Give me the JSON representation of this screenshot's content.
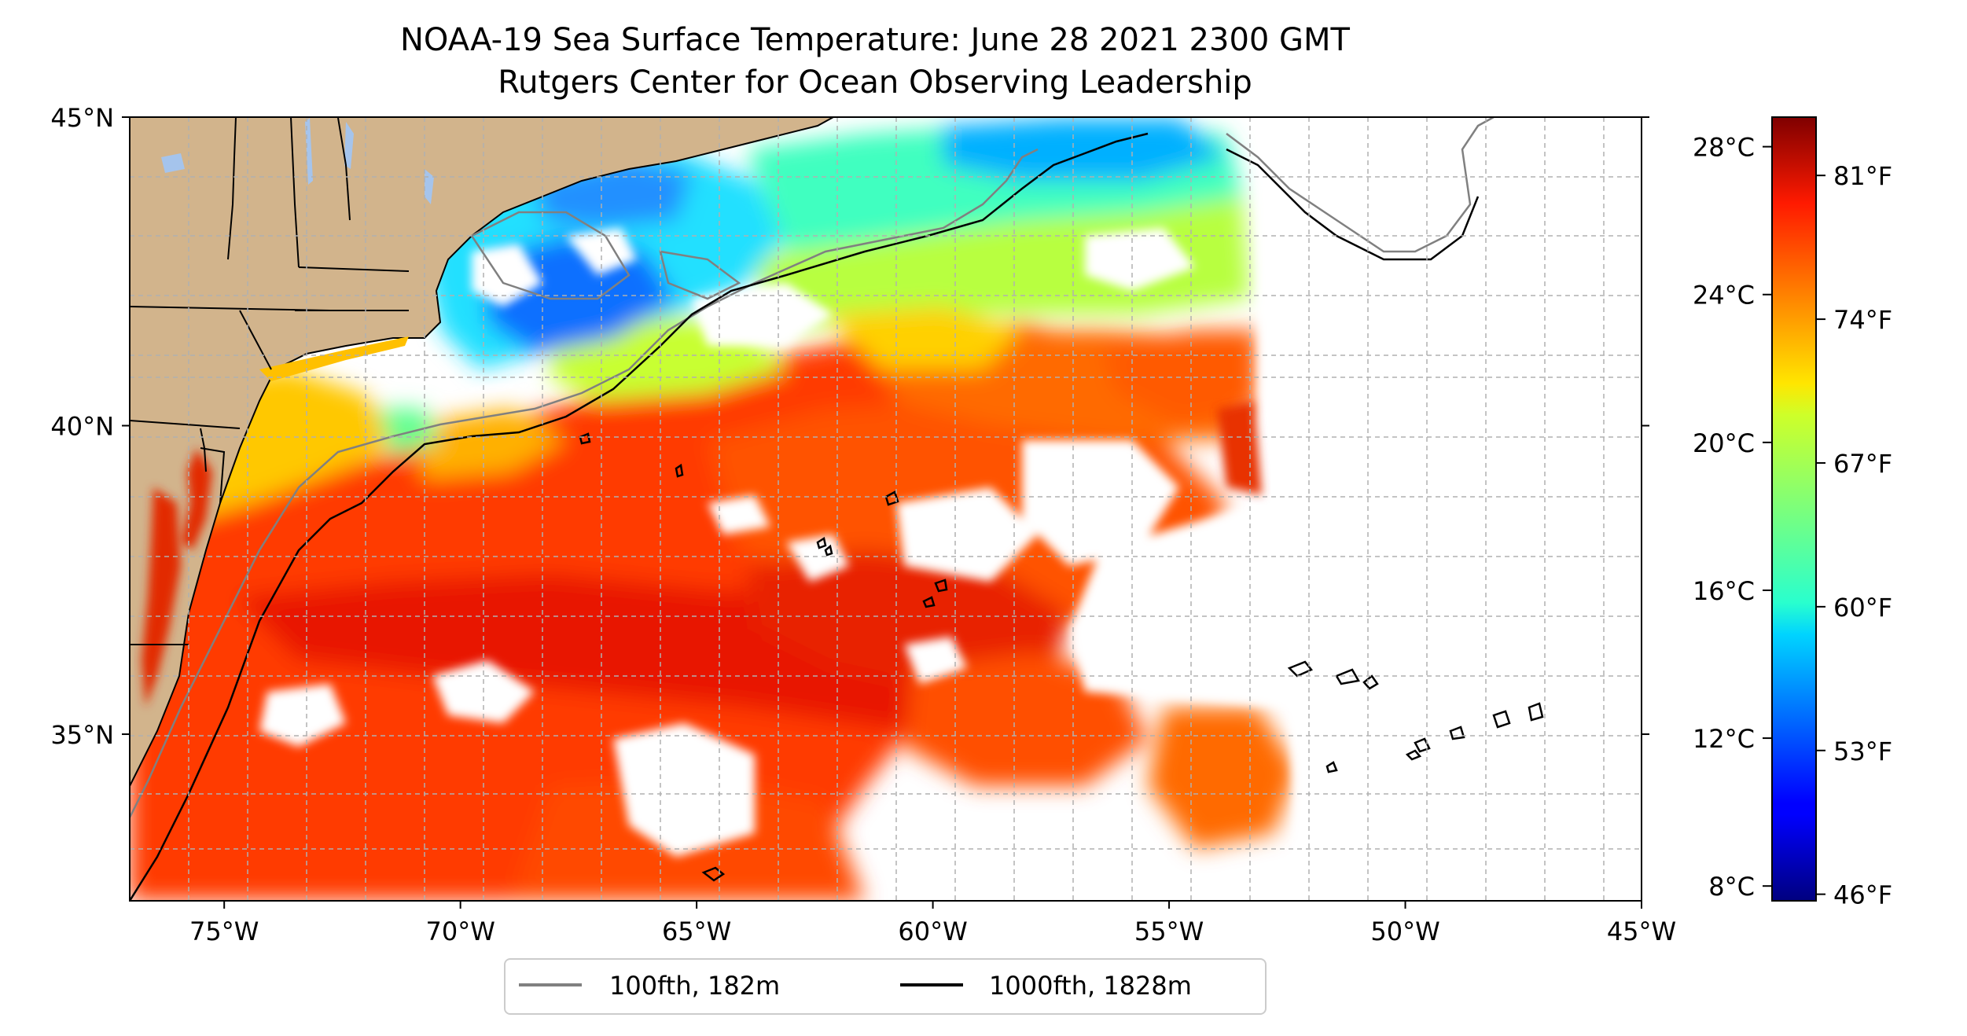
{
  "title": {
    "line1": "NOAA-19 Sea Surface Temperature: June 28 2021 2300 GMT",
    "line2": "Rutgers Center for Ocean Observing Leadership"
  },
  "map": {
    "lon_range": [
      -77,
      -45
    ],
    "lat_range": [
      32.3,
      45
    ],
    "gridlines": true,
    "land_color": "#d2b48c",
    "lon_ticks": [
      {
        "value": -75,
        "label": "75°W"
      },
      {
        "value": -70,
        "label": "70°W"
      },
      {
        "value": -65,
        "label": "65°W"
      },
      {
        "value": -60,
        "label": "60°W"
      },
      {
        "value": -55,
        "label": "55°W"
      },
      {
        "value": -50,
        "label": "50°W"
      },
      {
        "value": -45,
        "label": "45°W"
      }
    ],
    "lat_ticks": [
      {
        "value": 45,
        "label": "45°N"
      },
      {
        "value": 40,
        "label": "40°N"
      },
      {
        "value": 35,
        "label": "35°N"
      }
    ]
  },
  "colorbar": {
    "colormap": "jet",
    "range_c": [
      7.6,
      28.8
    ],
    "celsius_ticks": [
      {
        "value": 8,
        "label": "8°C"
      },
      {
        "value": 12,
        "label": "12°C"
      },
      {
        "value": 16,
        "label": "16°C"
      },
      {
        "value": 20,
        "label": "20°C"
      },
      {
        "value": 24,
        "label": "24°C"
      },
      {
        "value": 28,
        "label": "28°C"
      }
    ],
    "fahrenheit_ticks": [
      {
        "value": 46,
        "label": "46°F"
      },
      {
        "value": 53,
        "label": "53°F"
      },
      {
        "value": 60,
        "label": "60°F"
      },
      {
        "value": 67,
        "label": "67°F"
      },
      {
        "value": 74,
        "label": "74°F"
      },
      {
        "value": 81,
        "label": "81°F"
      }
    ]
  },
  "legend": {
    "items": [
      {
        "label": "100fth, 182m",
        "color": "#808080"
      },
      {
        "label": "1000fth, 1828m",
        "color": "#000000"
      }
    ]
  }
}
